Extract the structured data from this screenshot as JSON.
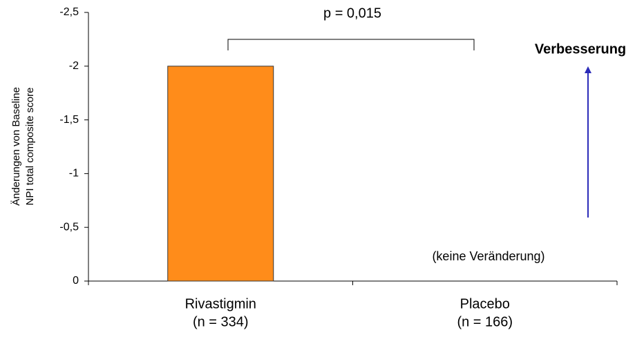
{
  "chart_data": {
    "type": "bar",
    "categories": [
      "Rivastigmin",
      "Placebo"
    ],
    "category_notes": [
      "(n = 334)",
      "(n = 166)"
    ],
    "values": [
      -2,
      0
    ],
    "color": "#ff8c1a",
    "y_label": [
      "Änderungen von Baseline",
      "NPI total composite score"
    ],
    "ylim": [
      0,
      -2.5
    ],
    "yticks": [
      {
        "value": -2.5,
        "label": "-2,5"
      },
      -2,
      {
        "value": -1.5,
        "label": "-1,5"
      },
      -1,
      {
        "value": -0.5,
        "label": "-0,5"
      },
      0
    ],
    "annotations": {
      "significance": "p = 0,015",
      "direction": "Verbesserung",
      "no_change": "(keine Veränderung)"
    },
    "arrow_color": "#2b2bb8"
  }
}
